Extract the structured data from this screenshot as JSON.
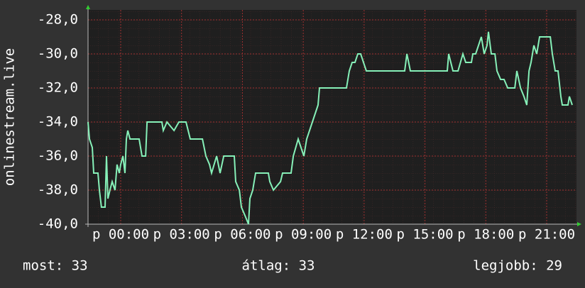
{
  "chart_data": {
    "type": "line",
    "ylabel": "onlinestream.live",
    "x": [
      -1.61,
      -1.54,
      -1.4,
      -1.33,
      -1.12,
      -1.05,
      -0.95,
      -0.77,
      -0.7,
      -0.63,
      -0.53,
      -0.42,
      -0.28,
      -0.18,
      -0.07,
      0,
      0.11,
      0.21,
      0.28,
      0.35,
      0.46,
      0.7,
      0.91,
      1.05,
      1.23,
      1.3,
      1.58,
      2.03,
      2.1,
      2.28,
      2.63,
      2.87,
      3.22,
      3.43,
      4.03,
      4.2,
      4.38,
      4.48,
      4.73,
      4.9,
      5.08,
      5.6,
      5.67,
      5.85,
      5.95,
      6.13,
      6.3,
      6.37,
      6.51,
      6.65,
      7.28,
      7.35,
      7.53,
      7.88,
      7.98,
      8.4,
      8.51,
      8.75,
      8.89,
      9.03,
      9.17,
      9.31,
      9.45,
      9.59,
      9.73,
      9.8,
      11.13,
      11.27,
      11.41,
      11.55,
      11.69,
      11.83,
      11.97,
      12.11,
      14.0,
      14.11,
      14.28,
      16.1,
      16.17,
      16.38,
      16.63,
      16.87,
      17.01,
      17.29,
      17.36,
      17.5,
      17.64,
      17.78,
      17.92,
      18.06,
      18.13,
      18.27,
      18.45,
      18.55,
      18.73,
      18.9,
      19.08,
      19.25,
      19.43,
      19.53,
      19.71,
      19.88,
      20.02,
      20.13,
      20.23,
      20.37,
      20.51,
      20.65,
      20.83,
      21.0,
      21.18,
      21.28,
      21.42,
      21.56,
      21.7,
      21.77,
      22.05,
      22.12,
      22.26
    ],
    "series": [
      {
        "color": "#86f0b8",
        "values": [
          -34,
          -35,
          -35.5,
          -37,
          -37,
          -38,
          -39,
          -39,
          -36,
          -38.5,
          -38,
          -37.5,
          -38,
          -36.5,
          -37,
          -36.5,
          -36,
          -37,
          -35,
          -34.5,
          -35,
          -35,
          -35,
          -36,
          -36,
          -34,
          -34,
          -34,
          -34.5,
          -34,
          -34.5,
          -34,
          -34,
          -35,
          -35,
          -36,
          -36.5,
          -37,
          -36,
          -37,
          -36,
          -36,
          -37.5,
          -38,
          -39,
          -39.5,
          -40,
          -38.5,
          -38,
          -37,
          -37,
          -37.5,
          -38,
          -37.5,
          -37,
          -37,
          -36,
          -35,
          -35.5,
          -36,
          -35,
          -34.5,
          -34,
          -33.5,
          -33,
          -32,
          -32,
          -31,
          -30.5,
          -30.5,
          -30,
          -30,
          -30.5,
          -31,
          -31,
          -30,
          -31,
          -31,
          -30,
          -31,
          -31,
          -30,
          -30.5,
          -30.5,
          -30,
          -30,
          -29.5,
          -29,
          -30,
          -29.5,
          -28.7,
          -30,
          -30,
          -31,
          -31.5,
          -31.5,
          -32,
          -32,
          -32,
          -31,
          -32,
          -32.5,
          -33,
          -31,
          -30.5,
          -29.5,
          -30,
          -29,
          -29,
          -29,
          -29,
          -30,
          -31,
          -31,
          -32.5,
          -33,
          -33,
          -32.5,
          -33
        ]
      }
    ],
    "xlim": [
      -1.61,
      22.47
    ],
    "xticks": [
      {
        "value": 0,
        "label": "p 00:00"
      },
      {
        "value": 3,
        "label": "p 03:00"
      },
      {
        "value": 6,
        "label": "p 06:00"
      },
      {
        "value": 9,
        "label": "p 09:00"
      },
      {
        "value": 12,
        "label": "p 12:00"
      },
      {
        "value": 15,
        "label": "p 15:00"
      },
      {
        "value": 18,
        "label": "p 18:00"
      },
      {
        "value": 21,
        "label": "p 21:00"
      }
    ],
    "ylim": [
      -40,
      -28
    ],
    "yticks": [
      {
        "value": -28,
        "label": "-28,0"
      },
      {
        "value": -30,
        "label": "-30,0"
      },
      {
        "value": -32,
        "label": "-32,0"
      },
      {
        "value": -34,
        "label": "-34,0"
      },
      {
        "value": -36,
        "label": "-36,0"
      },
      {
        "value": -38,
        "label": "-38,0"
      },
      {
        "value": -40,
        "label": "-40,0"
      }
    ],
    "grid": true,
    "stats": [
      "most: 33",
      "átlag: 33",
      "legjobb: 29"
    ]
  }
}
